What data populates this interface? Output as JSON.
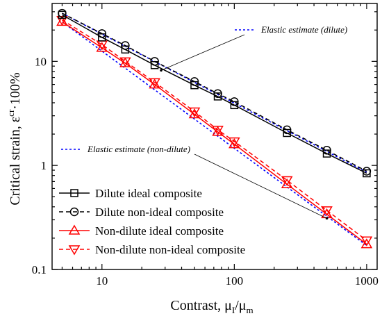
{
  "chart_data": {
    "type": "line",
    "x_scale": "log",
    "y_scale": "log",
    "xlim": [
      4.2,
      1200
    ],
    "ylim": [
      0.1,
      36
    ],
    "xlabel": "Contrast, μ",
    "xlabel_sub_1": "I",
    "xlabel_mid": "/μ",
    "xlabel_sub_2": "m",
    "ylabel": "Critical strain, ε",
    "ylabel_sup": "cr",
    "ylabel_tail": "·100%",
    "x_ticks": [
      {
        "value": 10,
        "label": "10"
      },
      {
        "value": 100,
        "label": "100"
      },
      {
        "value": 1000,
        "label": "1000"
      }
    ],
    "y_ticks": [
      {
        "value": 0.1,
        "label": "0.1"
      },
      {
        "value": 1,
        "label": "1"
      },
      {
        "value": 10,
        "label": "10"
      }
    ],
    "grid": false,
    "legend_position": "bottom-left",
    "series": [
      {
        "name": "Dilute ideal composite",
        "color": "#000000",
        "line": "solid",
        "marker": "square",
        "x": [
          5,
          10,
          15,
          25,
          50,
          75,
          100,
          250,
          500,
          1000
        ],
        "y": [
          28,
          17,
          13,
          9.2,
          5.9,
          4.6,
          3.8,
          2.05,
          1.3,
          0.84
        ]
      },
      {
        "name": "Dilute non-ideal composite",
        "color": "#000000",
        "line": "dashed",
        "marker": "circle",
        "x": [
          5,
          10,
          15,
          25,
          50,
          75,
          100,
          250,
          500,
          1000
        ],
        "y": [
          29,
          18.5,
          14.2,
          10,
          6.4,
          4.9,
          4.1,
          2.2,
          1.4,
          0.88
        ]
      },
      {
        "name": "Non-dilute ideal composite",
        "color": "#ff0000",
        "line": "solid",
        "marker": "triangle-up",
        "x": [
          5,
          10,
          15,
          25,
          50,
          75,
          100,
          250,
          500,
          1000
        ],
        "y": [
          24,
          13.5,
          9.6,
          6,
          3.1,
          2.1,
          1.6,
          0.66,
          0.34,
          0.175
        ]
      },
      {
        "name": "Non-dilute non-ideal composite",
        "color": "#ff0000",
        "line": "dashed",
        "marker": "triangle-down",
        "x": [
          5,
          10,
          15,
          25,
          50,
          75,
          100,
          250,
          500,
          1000
        ],
        "y": [
          25,
          14.5,
          10,
          6.3,
          3.3,
          2.2,
          1.7,
          0.72,
          0.37,
          0.19
        ]
      },
      {
        "name": "Elastic estimate (dilute)",
        "color": "#0000ff",
        "line": "dotted",
        "marker": "none",
        "x": [
          5,
          1000
        ],
        "y": [
          29,
          0.86
        ]
      },
      {
        "name": "Elastic estimate (non-dilute)",
        "color": "#0000ff",
        "line": "dotted",
        "marker": "none",
        "x": [
          5,
          1000
        ],
        "y": [
          24,
          0.17
        ]
      }
    ],
    "legend_entries": [
      0,
      1,
      2,
      3
    ],
    "annotations": [
      {
        "text": "Elastic estimate (dilute)",
        "series": 4,
        "arrow_to": {
          "x": 28,
          "y": 8.2
        }
      },
      {
        "text": "Elastic estimate (non-dilute)",
        "series": 5,
        "arrow_to": {
          "x": 500,
          "y": 0.31
        }
      }
    ]
  }
}
